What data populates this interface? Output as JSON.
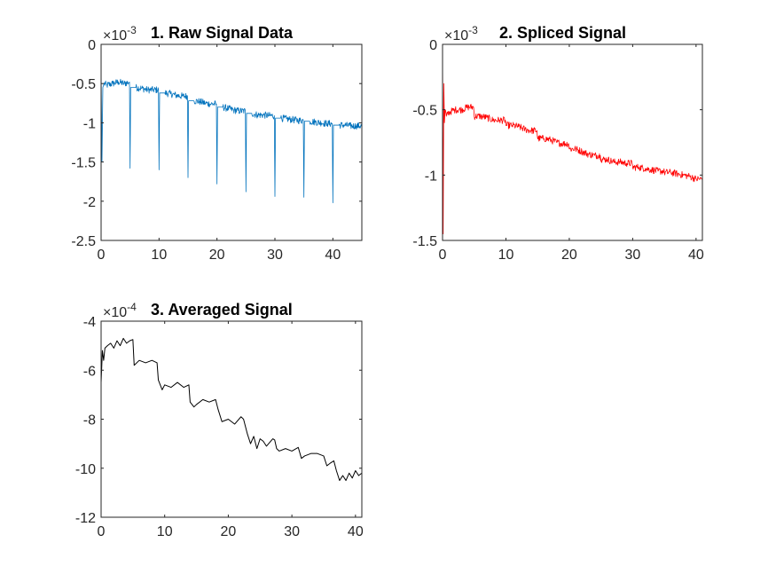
{
  "chart_data": [
    {
      "type": "line",
      "title": "1. Raw Signal Data",
      "exponent_base": "×10",
      "exponent": "-3",
      "color": "#0072BD",
      "xlim": [
        0,
        45
      ],
      "ylim": [
        -2.5,
        0
      ],
      "xticks": [
        "0",
        "10",
        "20",
        "30",
        "40"
      ],
      "xtick_values": [
        0,
        10,
        20,
        30,
        40
      ],
      "yticks": [
        "0",
        "-0.5",
        "-1",
        "-1.5",
        "-2",
        "-2.5"
      ],
      "ytick_values": [
        0,
        -0.5,
        -1,
        -1.5,
        -2,
        -2.5
      ],
      "series": [
        {
          "x": [
            0,
            0.15,
            0.3,
            0.5,
            1,
            2,
            3,
            4,
            4.9,
            5,
            5.1,
            6,
            7,
            8,
            9,
            9.9,
            10,
            10.1,
            11,
            12,
            13,
            14,
            14.9,
            15,
            15.1,
            16,
            17,
            18,
            19,
            19.9,
            20,
            20.1,
            21,
            22,
            23,
            24,
            24.9,
            25,
            25.1,
            26,
            27,
            28,
            29,
            29.9,
            30,
            30.1,
            31,
            32,
            33,
            34,
            34.9,
            35,
            35.1,
            36,
            37,
            38,
            39,
            39.9,
            40,
            40.1,
            41,
            42,
            43,
            44,
            45
          ],
          "values": [
            -0.3,
            -1.5,
            -0.55,
            -0.5,
            -0.52,
            -0.5,
            -0.48,
            -0.5,
            -0.48,
            -1.58,
            -0.55,
            -0.55,
            -0.56,
            -0.58,
            -0.58,
            -0.58,
            -1.6,
            -0.62,
            -0.62,
            -0.63,
            -0.65,
            -0.66,
            -0.66,
            -1.7,
            -0.72,
            -0.72,
            -0.73,
            -0.75,
            -0.76,
            -0.76,
            -1.78,
            -0.8,
            -0.8,
            -0.82,
            -0.84,
            -0.85,
            -0.85,
            -1.88,
            -0.88,
            -0.88,
            -0.9,
            -0.9,
            -0.91,
            -0.91,
            -1.94,
            -0.94,
            -0.94,
            -0.95,
            -0.96,
            -0.97,
            -0.97,
            -1.95,
            -0.98,
            -0.98,
            -0.99,
            -1,
            -1.01,
            -1.01,
            -2.02,
            -1.03,
            -1.03,
            -1.03,
            -1.04,
            -1.04,
            -1.04
          ]
        }
      ]
    },
    {
      "type": "line",
      "title": "2. Spliced Signal",
      "exponent_base": "×10",
      "exponent": "-3",
      "color": "#FF0000",
      "xlim": [
        0,
        41
      ],
      "ylim": [
        -1.5,
        0
      ],
      "xticks": [
        "0",
        "10",
        "20",
        "30",
        "40"
      ],
      "xtick_values": [
        0,
        10,
        20,
        30,
        40
      ],
      "yticks": [
        "0",
        "-0.5",
        "-1",
        "-1.5"
      ],
      "ytick_values": [
        0,
        -0.5,
        -1,
        -1.5
      ],
      "series": [
        {
          "x": [
            0,
            0.1,
            0.2,
            0.3,
            0.4,
            0.6,
            1,
            2,
            3,
            4,
            4.9,
            5,
            6,
            7,
            8,
            9,
            9.9,
            10,
            11,
            12,
            13,
            14,
            14.9,
            15,
            16,
            17,
            18,
            19,
            19.9,
            20,
            21,
            22,
            23,
            24,
            24.9,
            25,
            26,
            27,
            28,
            29,
            29.9,
            30,
            31,
            32,
            33,
            34,
            34.9,
            35,
            36,
            37,
            38,
            39,
            40,
            41
          ],
          "values": [
            0,
            -1.45,
            -0.3,
            -0.6,
            -0.5,
            -0.55,
            -0.52,
            -0.5,
            -0.5,
            -0.48,
            -0.48,
            -0.55,
            -0.55,
            -0.56,
            -0.58,
            -0.58,
            -0.58,
            -0.62,
            -0.62,
            -0.63,
            -0.65,
            -0.66,
            -0.66,
            -0.72,
            -0.72,
            -0.73,
            -0.75,
            -0.76,
            -0.76,
            -0.8,
            -0.8,
            -0.82,
            -0.84,
            -0.85,
            -0.85,
            -0.88,
            -0.88,
            -0.9,
            -0.9,
            -0.91,
            -0.91,
            -0.94,
            -0.94,
            -0.95,
            -0.96,
            -0.97,
            -0.97,
            -0.98,
            -0.98,
            -0.99,
            -1,
            -1.01,
            -1.03,
            -1.03
          ]
        }
      ]
    },
    {
      "type": "line",
      "title": "3. Averaged Signal",
      "exponent_base": "×10",
      "exponent": "-4",
      "color": "#000000",
      "xlim": [
        0,
        41
      ],
      "ylim": [
        -12,
        -4
      ],
      "xticks": [
        "0",
        "10",
        "20",
        "30",
        "40"
      ],
      "xtick_values": [
        0,
        10,
        20,
        30,
        40
      ],
      "yticks": [
        "-4",
        "-6",
        "-8",
        "-10",
        "-12"
      ],
      "ytick_values": [
        -4,
        -6,
        -8,
        -10,
        -12
      ],
      "series": [
        {
          "x": [
            0,
            0.2,
            0.4,
            0.6,
            1,
            1.5,
            2,
            2.5,
            3,
            3.5,
            4,
            4.5,
            5,
            5.2,
            6,
            7,
            8,
            8.8,
            9,
            9.6,
            10,
            11,
            12,
            13,
            13.8,
            14,
            14.6,
            15,
            16,
            17,
            18,
            18.4,
            19,
            20,
            21,
            22,
            22.4,
            23,
            23.5,
            24,
            24.5,
            25,
            25.5,
            26,
            27,
            27.3,
            27.6,
            28,
            29,
            30,
            31,
            31.5,
            32,
            33,
            34,
            35,
            35.5,
            36,
            36.6,
            37,
            37.5,
            38,
            38.5,
            39,
            39.5,
            40,
            40.5,
            41
          ],
          "values": [
            -6.5,
            -5.2,
            -5.6,
            -5.1,
            -5.0,
            -4.9,
            -5.1,
            -4.8,
            -5.0,
            -4.7,
            -4.9,
            -4.8,
            -4.75,
            -5.8,
            -5.6,
            -5.7,
            -5.6,
            -5.7,
            -6.4,
            -6.8,
            -6.6,
            -6.7,
            -6.5,
            -6.7,
            -6.6,
            -7.3,
            -7.5,
            -7.4,
            -7.2,
            -7.3,
            -7.2,
            -7.6,
            -8.1,
            -8.0,
            -8.2,
            -7.9,
            -8.0,
            -8.6,
            -9.0,
            -8.7,
            -9.2,
            -8.8,
            -8.9,
            -9.1,
            -8.8,
            -8.85,
            -9.2,
            -9.3,
            -9.2,
            -9.3,
            -9.15,
            -9.6,
            -9.5,
            -9.4,
            -9.4,
            -9.5,
            -9.9,
            -9.8,
            -9.7,
            -10.1,
            -10.5,
            -10.3,
            -10.5,
            -10.2,
            -10.4,
            -10.1,
            -10.3,
            -10.2
          ]
        }
      ]
    }
  ]
}
